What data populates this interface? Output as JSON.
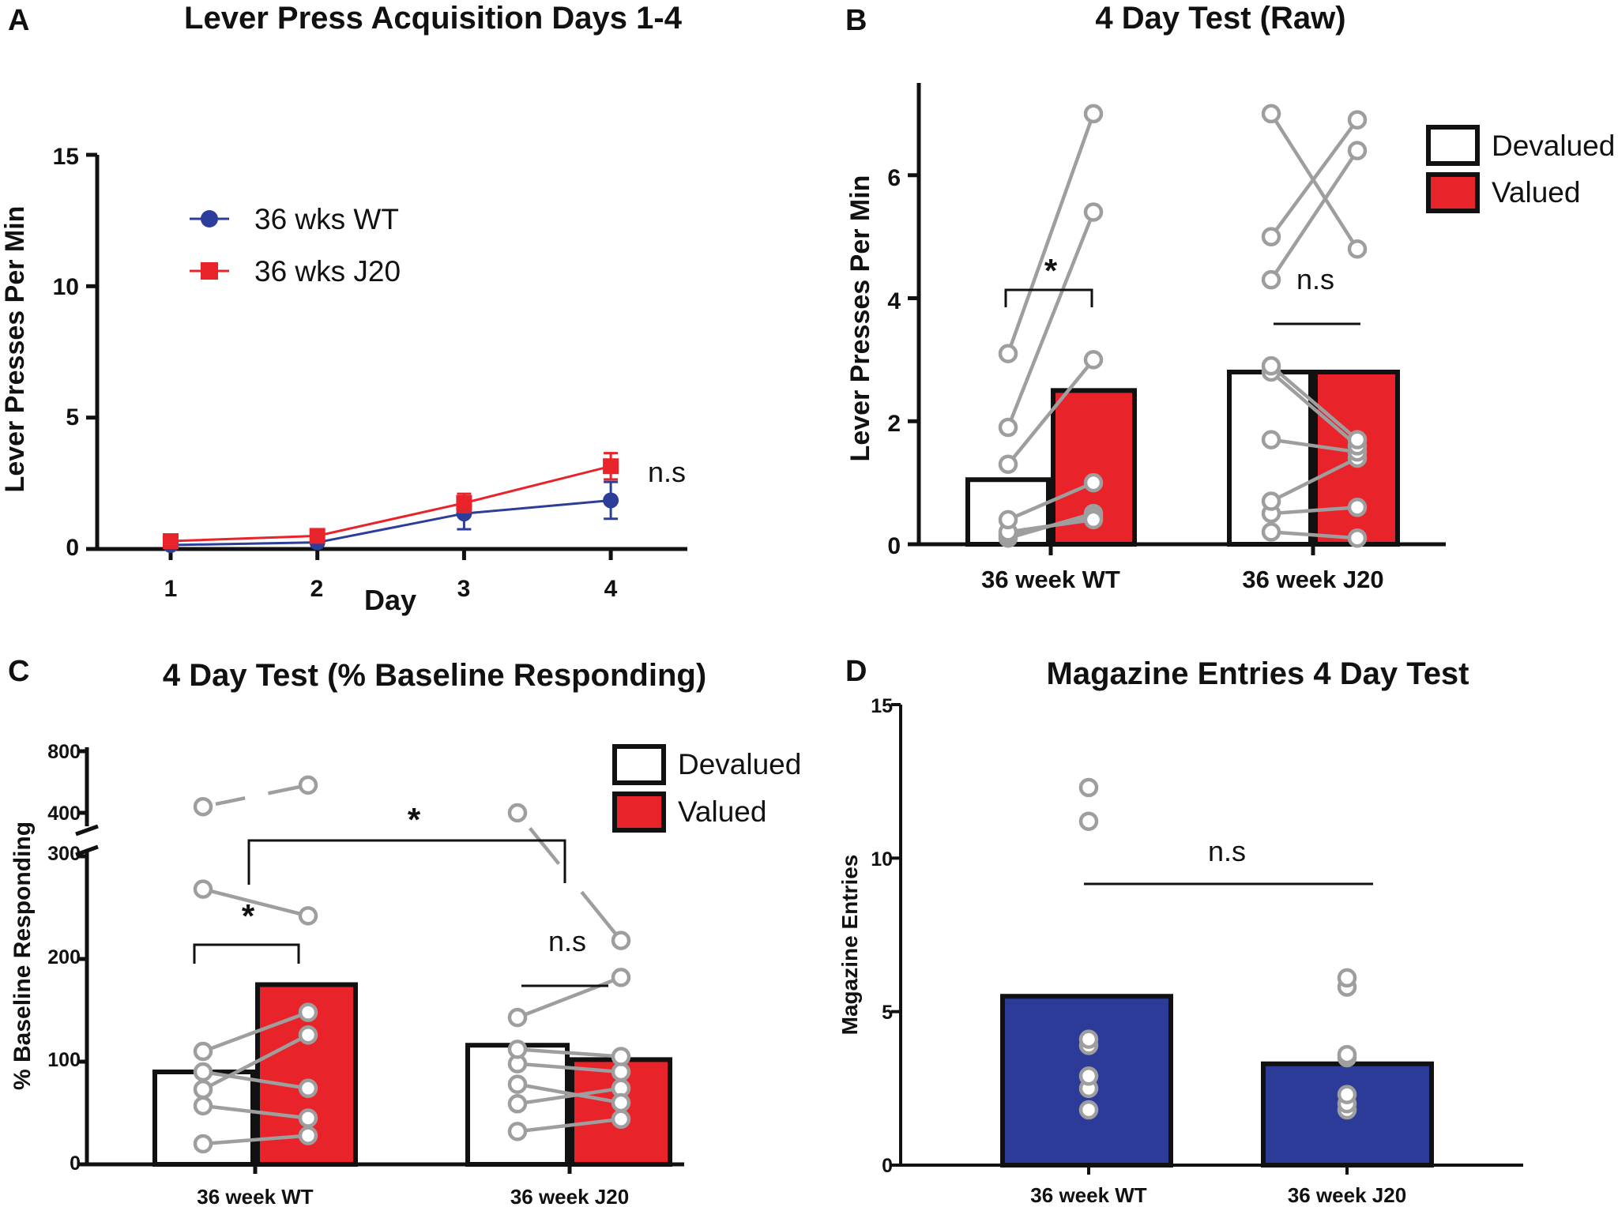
{
  "panels": {
    "a": {
      "label": "A"
    },
    "b": {
      "label": "B"
    },
    "c": {
      "label": "C"
    },
    "d": {
      "label": "D"
    }
  },
  "colors": {
    "wt": "#2c3e9a",
    "j20": "#e8232a",
    "valued": "#e8232a",
    "devalued": "#ffffff",
    "magazine": "#2b3b97",
    "points": "#9e9e9e",
    "axis": "#111111"
  },
  "chart_data": [
    {
      "id": "A",
      "type": "line",
      "title": "Lever Press Acquisition Days 1-4",
      "xlabel": "Day",
      "ylabel": "Lever Presses Per Min",
      "x": [
        1,
        2,
        3,
        4
      ],
      "x_tick_labels": [
        "1",
        "2",
        "3",
        "4"
      ],
      "ylim": [
        0,
        15
      ],
      "y_ticks": [
        0,
        5,
        10,
        15
      ],
      "y_tick_labels": [
        "0",
        "5",
        "10",
        "15"
      ],
      "series": [
        {
          "name": "36 wks WT",
          "marker": "circle",
          "values": [
            0.15,
            0.25,
            1.35,
            1.85
          ],
          "errors": [
            0.1,
            0.1,
            0.6,
            0.7
          ]
        },
        {
          "name": "36 wks J20",
          "marker": "square",
          "values": [
            0.3,
            0.5,
            1.75,
            3.15
          ],
          "errors": [
            0.1,
            0.15,
            0.35,
            0.5
          ]
        }
      ],
      "annotation": "n.s"
    },
    {
      "id": "B",
      "type": "bar",
      "title": "4 Day Test (Raw)",
      "ylabel": "Lever Presses Per Min",
      "categories": [
        "36 week WT",
        "36 week J20"
      ],
      "ylim": [
        0,
        7.5
      ],
      "y_ticks": [
        0,
        2,
        4,
        6
      ],
      "y_tick_labels": [
        "0",
        "2",
        "4",
        "6"
      ],
      "series": [
        {
          "name": "Devalued",
          "values": [
            1.05,
            2.8
          ]
        },
        {
          "name": "Valued",
          "values": [
            2.5,
            2.8
          ]
        }
      ],
      "pairs": [
        [
          [
            0.1,
            0.5
          ],
          [
            0.15,
            0.45
          ],
          [
            0.2,
            0.4
          ],
          [
            0.4,
            1.0
          ],
          [
            1.3,
            3.0
          ],
          [
            1.9,
            5.4
          ],
          [
            3.1,
            7.0
          ]
        ],
        [
          [
            0.2,
            0.1
          ],
          [
            0.5,
            0.6
          ],
          [
            0.7,
            1.4
          ],
          [
            1.7,
            1.5
          ],
          [
            2.8,
            1.6
          ],
          [
            2.9,
            1.7
          ],
          [
            4.3,
            6.4
          ],
          [
            5.0,
            6.9
          ],
          [
            7.0,
            4.8
          ]
        ]
      ],
      "annotations": {
        "sig_wt": "*",
        "ns_j20": "n.s"
      }
    },
    {
      "id": "C",
      "type": "bar",
      "title": "4 Day Test (% Baseline Responding)",
      "ylabel": "% Baseline Responding",
      "categories": [
        "36 week WT",
        "36 week J20"
      ],
      "y_ticks": [
        0,
        100,
        200,
        300,
        400,
        800
      ],
      "y_tick_labels": [
        "0",
        "100",
        "200",
        "300",
        "400",
        "800"
      ],
      "axis_break": [
        300,
        400
      ],
      "series": [
        {
          "name": "Devalued",
          "values": [
            90,
            116
          ]
        },
        {
          "name": "Valued",
          "values": [
            175,
            102
          ]
        }
      ],
      "pairs": [
        [
          [
            20,
            28
          ],
          [
            57,
            45
          ],
          [
            73,
            126
          ],
          [
            90,
            74
          ],
          [
            110,
            148
          ],
          [
            268,
            242
          ],
          [
            440,
            580
          ]
        ],
        [
          [
            32,
            44
          ],
          [
            59,
            74
          ],
          [
            78,
            60
          ],
          [
            98,
            90
          ],
          [
            112,
            105
          ],
          [
            143,
            182
          ],
          [
            370,
            218
          ]
        ]
      ],
      "annotations": {
        "sig_wt": "*",
        "sig_between": "*",
        "ns_j20": "n.s"
      }
    },
    {
      "id": "D",
      "type": "bar",
      "title": "Magazine Entries 4 Day Test",
      "ylabel": "Magazine Entries",
      "categories": [
        "36 week WT",
        "36 week J20"
      ],
      "ylim": [
        0,
        15
      ],
      "y_ticks": [
        0,
        5,
        10,
        15
      ],
      "y_tick_labels": [
        "0",
        "5",
        "10",
        "15"
      ],
      "values": [
        5.5,
        3.3
      ],
      "points": [
        [
          1.8,
          2.5,
          2.9,
          3.9,
          4.1,
          11.2,
          12.3
        ],
        [
          1.8,
          2.0,
          2.3,
          3.5,
          3.6,
          5.8,
          6.1
        ]
      ],
      "annotation": "n.s"
    }
  ]
}
